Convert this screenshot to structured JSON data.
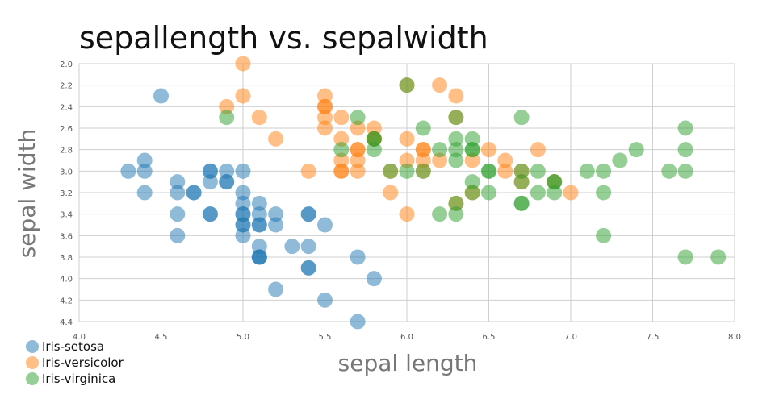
{
  "chart_data": {
    "type": "scatter",
    "title": "sepallength vs. sepalwidth",
    "xlabel": "sepal length",
    "ylabel": "sepal width",
    "xlim": [
      4.0,
      8.0
    ],
    "ylim": [
      2.0,
      4.4
    ],
    "y_inverted": true,
    "xticks": [
      4.0,
      4.5,
      5.0,
      5.5,
      6.0,
      6.5,
      7.0,
      7.5,
      8.0
    ],
    "yticks": [
      2.0,
      2.2,
      2.4,
      2.6,
      2.8,
      3.0,
      3.2,
      3.4,
      3.6,
      3.8,
      4.0,
      4.2,
      4.4
    ],
    "legend_position": "bottom-left",
    "series": [
      {
        "name": "Iris-setosa",
        "color": "#1f77b4",
        "points": [
          [
            4.3,
            3.0
          ],
          [
            4.4,
            2.9
          ],
          [
            4.4,
            3.0
          ],
          [
            4.4,
            3.2
          ],
          [
            4.5,
            2.3
          ],
          [
            4.6,
            3.1
          ],
          [
            4.6,
            3.2
          ],
          [
            4.6,
            3.4
          ],
          [
            4.6,
            3.6
          ],
          [
            4.7,
            3.2
          ],
          [
            4.7,
            3.2
          ],
          [
            4.8,
            3.0
          ],
          [
            4.8,
            3.0
          ],
          [
            4.8,
            3.1
          ],
          [
            4.8,
            3.4
          ],
          [
            4.8,
            3.4
          ],
          [
            4.9,
            3.0
          ],
          [
            4.9,
            3.1
          ],
          [
            4.9,
            3.1
          ],
          [
            5.0,
            3.0
          ],
          [
            5.0,
            3.2
          ],
          [
            5.0,
            3.3
          ],
          [
            5.0,
            3.4
          ],
          [
            5.0,
            3.4
          ],
          [
            5.0,
            3.5
          ],
          [
            5.0,
            3.5
          ],
          [
            5.0,
            3.6
          ],
          [
            5.1,
            3.3
          ],
          [
            5.1,
            3.4
          ],
          [
            5.1,
            3.5
          ],
          [
            5.1,
            3.5
          ],
          [
            5.1,
            3.7
          ],
          [
            5.1,
            3.8
          ],
          [
            5.1,
            3.8
          ],
          [
            5.1,
            3.8
          ],
          [
            5.2,
            3.4
          ],
          [
            5.2,
            3.5
          ],
          [
            5.2,
            4.1
          ],
          [
            5.3,
            3.7
          ],
          [
            5.4,
            3.4
          ],
          [
            5.4,
            3.4
          ],
          [
            5.4,
            3.7
          ],
          [
            5.4,
            3.9
          ],
          [
            5.4,
            3.9
          ],
          [
            5.5,
            3.5
          ],
          [
            5.5,
            4.2
          ],
          [
            5.7,
            3.8
          ],
          [
            5.7,
            4.4
          ],
          [
            5.8,
            4.0
          ]
        ]
      },
      {
        "name": "Iris-versicolor",
        "color": "#ff7f0e",
        "points": [
          [
            4.9,
            2.4
          ],
          [
            5.0,
            2.0
          ],
          [
            5.0,
            2.3
          ],
          [
            5.1,
            2.5
          ],
          [
            5.2,
            2.7
          ],
          [
            5.4,
            3.0
          ],
          [
            5.5,
            2.3
          ],
          [
            5.5,
            2.4
          ],
          [
            5.5,
            2.4
          ],
          [
            5.5,
            2.5
          ],
          [
            5.5,
            2.6
          ],
          [
            5.6,
            2.5
          ],
          [
            5.6,
            2.7
          ],
          [
            5.6,
            2.9
          ],
          [
            5.6,
            3.0
          ],
          [
            5.6,
            3.0
          ],
          [
            5.7,
            2.6
          ],
          [
            5.7,
            2.8
          ],
          [
            5.7,
            2.8
          ],
          [
            5.7,
            2.9
          ],
          [
            5.7,
            3.0
          ],
          [
            5.8,
            2.6
          ],
          [
            5.8,
            2.7
          ],
          [
            5.8,
            2.7
          ],
          [
            5.9,
            3.0
          ],
          [
            5.9,
            3.2
          ],
          [
            6.0,
            2.2
          ],
          [
            6.0,
            2.7
          ],
          [
            6.0,
            2.9
          ],
          [
            6.0,
            3.4
          ],
          [
            6.1,
            2.8
          ],
          [
            6.1,
            2.8
          ],
          [
            6.1,
            2.9
          ],
          [
            6.1,
            3.0
          ],
          [
            6.2,
            2.2
          ],
          [
            6.2,
            2.9
          ],
          [
            6.3,
            2.3
          ],
          [
            6.3,
            2.5
          ],
          [
            6.3,
            3.3
          ],
          [
            6.4,
            2.9
          ],
          [
            6.4,
            3.2
          ],
          [
            6.5,
            2.8
          ],
          [
            6.6,
            2.9
          ],
          [
            6.6,
            3.0
          ],
          [
            6.7,
            3.0
          ],
          [
            6.7,
            3.1
          ],
          [
            6.8,
            2.8
          ],
          [
            6.9,
            3.1
          ],
          [
            7.0,
            3.2
          ]
        ]
      },
      {
        "name": "Iris-virginica",
        "color": "#2ca02c",
        "points": [
          [
            4.9,
            2.5
          ],
          [
            5.6,
            2.8
          ],
          [
            5.7,
            2.5
          ],
          [
            5.8,
            2.7
          ],
          [
            5.8,
            2.7
          ],
          [
            5.8,
            2.8
          ],
          [
            5.9,
            3.0
          ],
          [
            6.0,
            2.2
          ],
          [
            6.0,
            3.0
          ],
          [
            6.1,
            2.6
          ],
          [
            6.1,
            3.0
          ],
          [
            6.2,
            2.8
          ],
          [
            6.2,
            3.4
          ],
          [
            6.3,
            2.5
          ],
          [
            6.3,
            2.7
          ],
          [
            6.3,
            2.8
          ],
          [
            6.3,
            2.9
          ],
          [
            6.3,
            3.3
          ],
          [
            6.3,
            3.4
          ],
          [
            6.4,
            2.7
          ],
          [
            6.4,
            2.8
          ],
          [
            6.4,
            2.8
          ],
          [
            6.4,
            3.1
          ],
          [
            6.4,
            3.2
          ],
          [
            6.5,
            3.0
          ],
          [
            6.5,
            3.0
          ],
          [
            6.5,
            3.2
          ],
          [
            6.7,
            2.5
          ],
          [
            6.7,
            3.0
          ],
          [
            6.7,
            3.1
          ],
          [
            6.7,
            3.3
          ],
          [
            6.7,
            3.3
          ],
          [
            6.8,
            3.0
          ],
          [
            6.8,
            3.2
          ],
          [
            6.9,
            3.1
          ],
          [
            6.9,
            3.1
          ],
          [
            6.9,
            3.2
          ],
          [
            7.1,
            3.0
          ],
          [
            7.2,
            3.0
          ],
          [
            7.2,
            3.2
          ],
          [
            7.2,
            3.6
          ],
          [
            7.3,
            2.9
          ],
          [
            7.4,
            2.8
          ],
          [
            7.6,
            3.0
          ],
          [
            7.7,
            2.6
          ],
          [
            7.7,
            2.8
          ],
          [
            7.7,
            3.0
          ],
          [
            7.7,
            3.8
          ],
          [
            7.9,
            3.8
          ]
        ]
      }
    ]
  }
}
